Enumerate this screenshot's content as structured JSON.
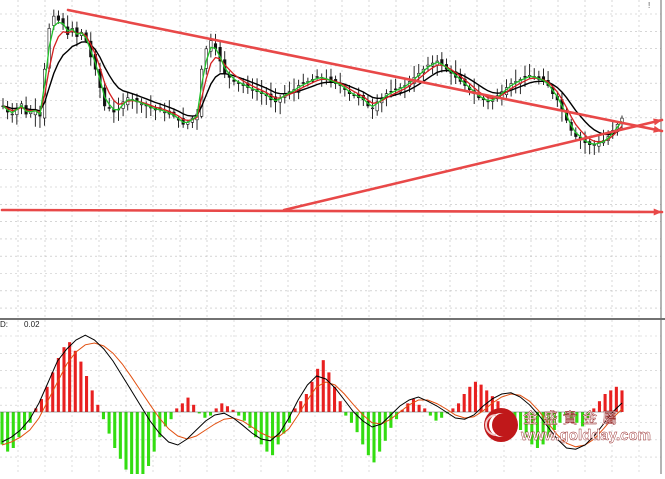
{
  "chart_data": [
    {
      "type": "candlestick",
      "panel": "price",
      "title": "",
      "grid": true,
      "x_axis_labels": false,
      "y_axis_labels": false,
      "colors": {
        "up_candle": "#111111",
        "down_candle": "#111111",
        "ma_fast": "#22c02a",
        "ma_mid": "#d42020",
        "ma_slow": "#000000",
        "trendline": "#e84848",
        "support": "#e84848"
      },
      "close_path": [
        52,
        49,
        48,
        51,
        53,
        48,
        49,
        50,
        47,
        70,
        90,
        96,
        94,
        92,
        87,
        90,
        86,
        88,
        84,
        76,
        70,
        61,
        52,
        51,
        49,
        50,
        54,
        56,
        55,
        54,
        53,
        52,
        51,
        50,
        50,
        49,
        48,
        47,
        45,
        43,
        44,
        46,
        48,
        70,
        80,
        84,
        80,
        74,
        68,
        66,
        64,
        63,
        62,
        61,
        60,
        59,
        58,
        57,
        55,
        54,
        56,
        58,
        59,
        60,
        62,
        63,
        64,
        65,
        66,
        66,
        65,
        64,
        63,
        62,
        60,
        58,
        57,
        56,
        55,
        52,
        51,
        54,
        56,
        58,
        59,
        60,
        61,
        62,
        64,
        66,
        68,
        70,
        72,
        73,
        74,
        72,
        70,
        68,
        66,
        64,
        62,
        60,
        58,
        56,
        55,
        54,
        55,
        57,
        59,
        61,
        63,
        64,
        65,
        66,
        67,
        66,
        65,
        64,
        62,
        58,
        55,
        50,
        45,
        40,
        37,
        36,
        34,
        33,
        33,
        34,
        35,
        37,
        40,
        43,
        46
      ],
      "moving_averages": [
        "fast",
        "mid",
        "slow"
      ],
      "annotations": {
        "descending_resistance": true,
        "ascending_support": true,
        "horizontal_support": true,
        "symmetrical_triangle_apex_right": true
      }
    },
    {
      "type": "bar",
      "panel": "macd",
      "indicator": "MACD",
      "legend_prefix": "D:",
      "legend_value": "0.02",
      "colors": {
        "positive": "#e82020",
        "negative": "#33dd11",
        "dif_line": "#000000",
        "dea_line": "#e25010",
        "zero_line": "#555555"
      },
      "histogram": [
        -0.45,
        -0.55,
        -0.5,
        -0.35,
        -0.25,
        -0.15,
        0.05,
        0.18,
        0.35,
        0.55,
        0.75,
        0.9,
        0.97,
        0.85,
        0.7,
        0.5,
        0.3,
        0.1,
        -0.1,
        -0.3,
        -0.5,
        -0.65,
        -0.8,
        -0.9,
        -0.95,
        -0.9,
        -0.75,
        -0.55,
        -0.35,
        -0.2,
        -0.1,
        0.05,
        0.12,
        0.2,
        0.1,
        -0.02,
        -0.08,
        -0.05,
        0.05,
        0.12,
        0.08,
        0.03,
        -0.05,
        -0.12,
        -0.22,
        -0.35,
        -0.45,
        -0.55,
        -0.6,
        -0.45,
        -0.3,
        -0.15,
        0.05,
        0.15,
        0.25,
        0.42,
        0.6,
        0.72,
        0.55,
        0.35,
        0.15,
        -0.05,
        -0.15,
        -0.28,
        -0.45,
        -0.6,
        -0.7,
        -0.55,
        -0.4,
        -0.22,
        -0.1,
        0.03,
        0.12,
        0.18,
        0.1,
        0.05,
        -0.05,
        -0.12,
        -0.08,
        -0.02,
        0.05,
        0.12,
        0.25,
        0.35,
        0.42,
        0.38,
        0.3,
        0.22,
        0.15,
        0.05,
        -0.05,
        -0.15,
        -0.25,
        -0.35,
        -0.45,
        -0.5,
        -0.45,
        -0.35,
        -0.25,
        -0.15,
        -0.05,
        -0.1,
        -0.15,
        -0.2,
        -0.1,
        0.05,
        0.15,
        0.25,
        0.3,
        0.35,
        0.3
      ],
      "dif": [
        -0.5,
        -0.42,
        -0.3,
        -0.12,
        0.15,
        0.5,
        0.85,
        1.05,
        1.2,
        1.28,
        1.2,
        1.05,
        0.85,
        0.6,
        0.35,
        0.1,
        -0.15,
        -0.35,
        -0.5,
        -0.55,
        -0.45,
        -0.3,
        -0.15,
        -0.05,
        -0.02,
        -0.1,
        -0.22,
        -0.35,
        -0.45,
        -0.48,
        -0.35,
        -0.1,
        0.2,
        0.45,
        0.6,
        0.55,
        0.4,
        0.2,
        0.0,
        -0.15,
        -0.25,
        -0.2,
        -0.05,
        0.1,
        0.2,
        0.25,
        0.18,
        0.1,
        0.0,
        -0.1,
        -0.12,
        -0.05,
        0.1,
        0.22,
        0.3,
        0.32,
        0.25,
        0.12,
        -0.05,
        -0.25,
        -0.45,
        -0.6,
        -0.62,
        -0.55,
        -0.4,
        -0.2,
        0.0,
        0.15
      ],
      "dea": [
        -0.55,
        -0.5,
        -0.42,
        -0.3,
        -0.1,
        0.2,
        0.5,
        0.8,
        1.0,
        1.12,
        1.15,
        1.1,
        0.98,
        0.8,
        0.58,
        0.35,
        0.12,
        -0.1,
        -0.28,
        -0.4,
        -0.45,
        -0.4,
        -0.3,
        -0.2,
        -0.12,
        -0.1,
        -0.15,
        -0.25,
        -0.35,
        -0.42,
        -0.4,
        -0.28,
        -0.05,
        0.2,
        0.42,
        0.5,
        0.45,
        0.3,
        0.12,
        -0.05,
        -0.18,
        -0.2,
        -0.12,
        0.0,
        0.12,
        0.2,
        0.2,
        0.14,
        0.05,
        -0.05,
        -0.1,
        -0.08,
        0.02,
        0.15,
        0.25,
        0.3,
        0.28,
        0.18,
        0.02,
        -0.18,
        -0.38,
        -0.52,
        -0.58,
        -0.55,
        -0.45,
        -0.28,
        -0.1,
        0.05
      ]
    }
  ],
  "legend": {
    "prefix": "D:",
    "value": "0.02"
  },
  "brand": {
    "name_cn": "金 盛 貴 金 屬",
    "url": "www.goldday.com",
    "logo_color": "#c0181a",
    "text_color": "#ffffff"
  },
  "corner_mark": "!"
}
